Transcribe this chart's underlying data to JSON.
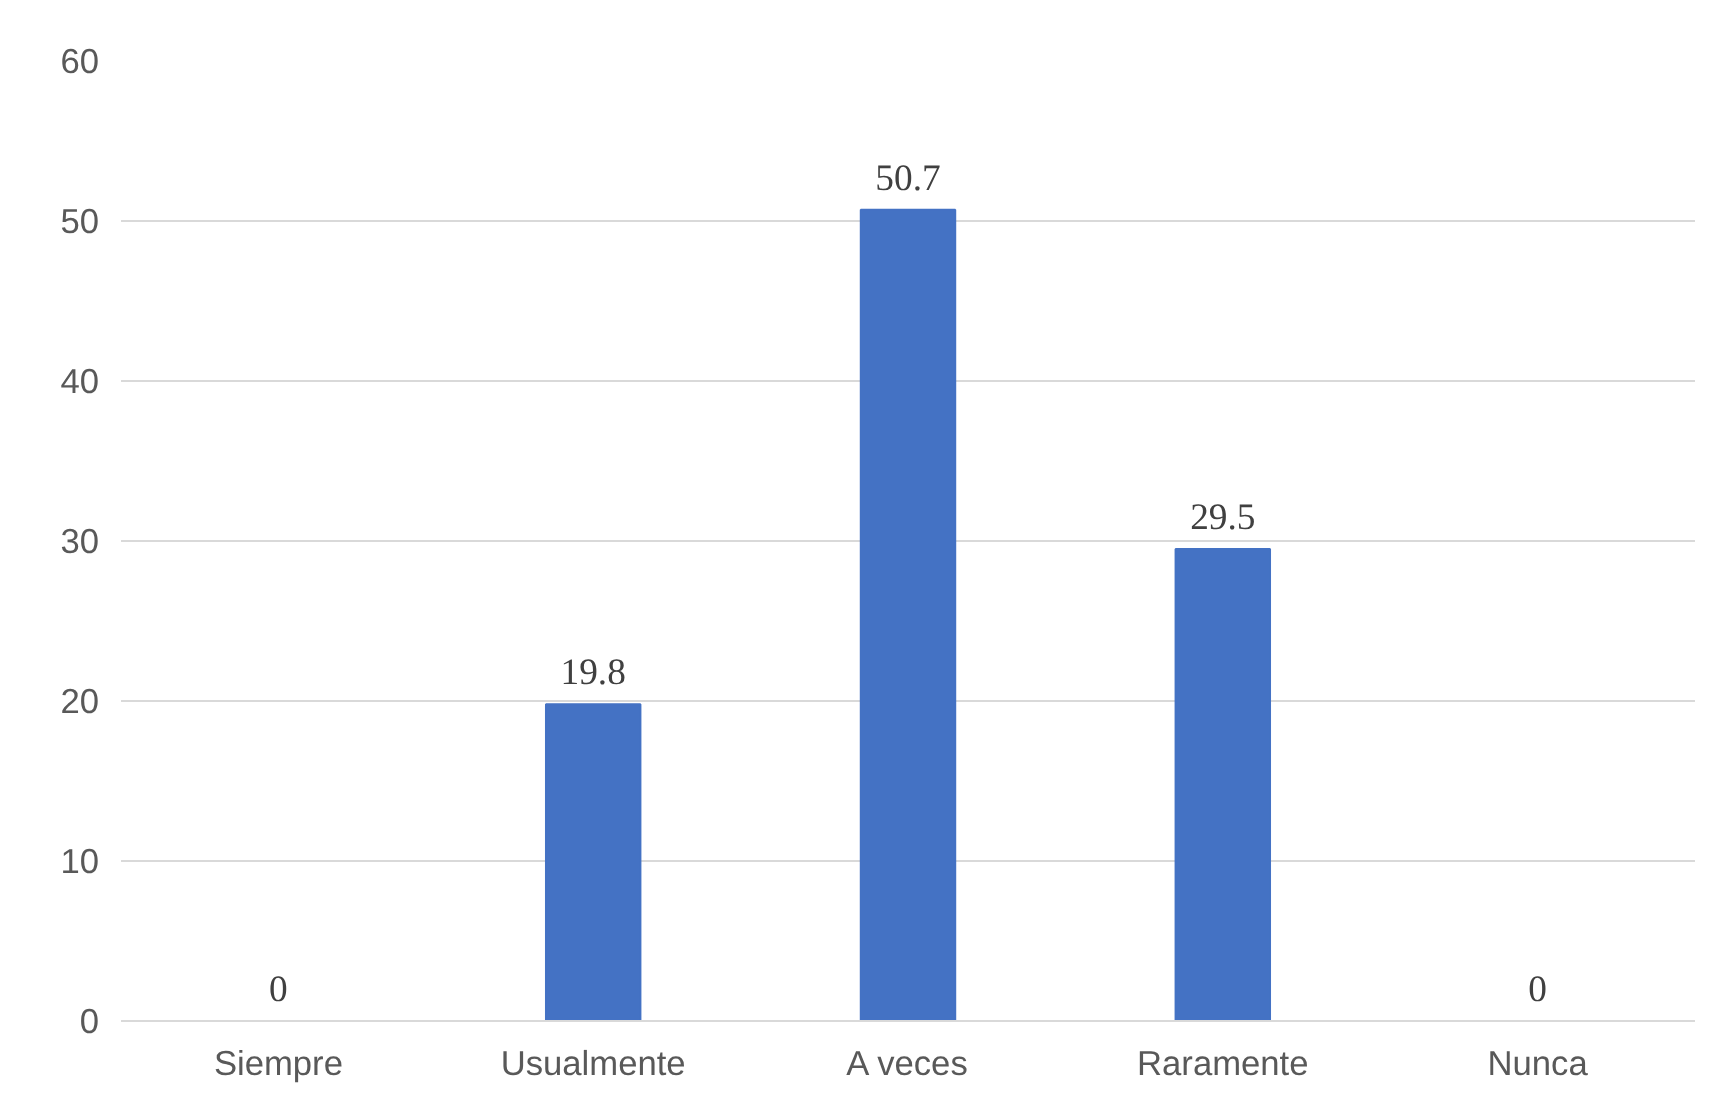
{
  "chart_data": {
    "type": "bar",
    "categories": [
      "Siempre",
      "Usualmente",
      "A veces",
      "Raramente",
      "Nunca"
    ],
    "values": [
      0,
      19.8,
      50.7,
      29.5,
      0
    ],
    "color": "#4472c4",
    "ylim": [
      0,
      60
    ],
    "yticks": [
      0,
      10,
      20,
      30,
      40,
      50,
      60
    ],
    "grid": "y",
    "data_labels": true
  }
}
